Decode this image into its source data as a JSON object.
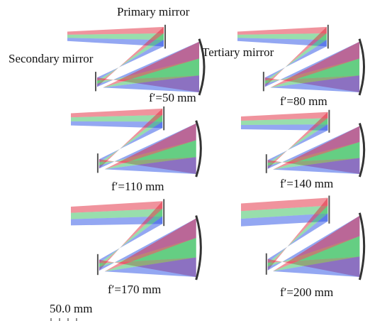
{
  "labels": {
    "primary": "Primary mirror",
    "secondary": "Secondary mirror",
    "tertiary": "Tertiary mirror"
  },
  "panels": [
    {
      "focal_length": "f′=50 mm"
    },
    {
      "focal_length": "f′=80 mm"
    },
    {
      "focal_length": "f′=110 mm"
    },
    {
      "focal_length": "f′=140 mm"
    },
    {
      "focal_length": "f′=170 mm"
    },
    {
      "focal_length": "f′=200 mm"
    }
  ],
  "scale_bar": "50.0 mm"
}
